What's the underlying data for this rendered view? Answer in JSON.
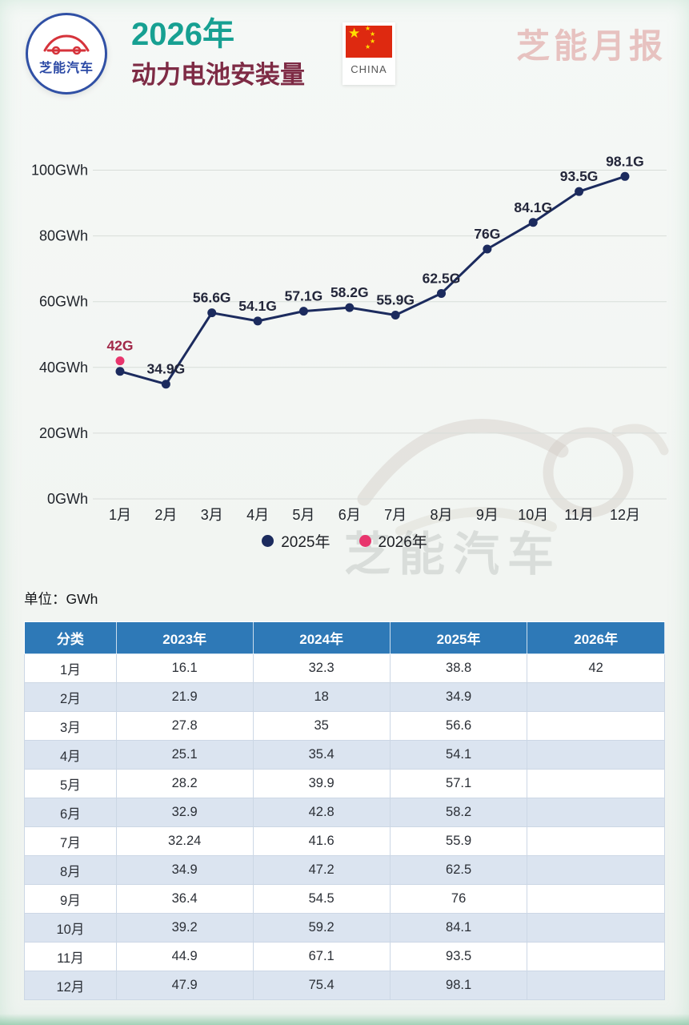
{
  "colors": {
    "title_teal": "#17a092",
    "title_maroon": "#7e2b45",
    "line_navy": "#1c2b5e",
    "dot_pink": "#e8356d",
    "label_red": "#a12848",
    "table_header_bg": "#2e79b7",
    "row_stripe": "#dbe4f0",
    "masthead_pink": "#e7c2c0"
  },
  "header": {
    "logo_text": "芝能汽车",
    "title_line1": "2026年",
    "title_line2": "动力电池安装量",
    "flag_label": "CHINA",
    "masthead": "芝能月报"
  },
  "chart_data": {
    "type": "line",
    "title": "",
    "xlabel": "",
    "ylabel": "GWh",
    "ylim": [
      0,
      100
    ],
    "grid": true,
    "legend_position": "bottom",
    "x": [
      "1月",
      "2月",
      "3月",
      "4月",
      "5月",
      "6月",
      "7月",
      "8月",
      "9月",
      "10月",
      "11月",
      "12月"
    ],
    "y_ticks": [
      {
        "v": 0,
        "label": "0GWh"
      },
      {
        "v": 20,
        "label": "20GWh"
      },
      {
        "v": 40,
        "label": "40GWh"
      },
      {
        "v": 60,
        "label": "60GWh"
      },
      {
        "v": 80,
        "label": "80GWh"
      },
      {
        "v": 100,
        "label": "100GWh"
      }
    ],
    "series": [
      {
        "name": "2025年",
        "color": "#1c2b5e",
        "label_color": "#23263a",
        "values": [
          38.8,
          34.9,
          56.6,
          54.1,
          57.1,
          58.2,
          55.9,
          62.5,
          76,
          84.1,
          93.5,
          98.1
        ],
        "labels": [
          "",
          "34.9G",
          "56.6G",
          "54.1G",
          "57.1G",
          "58.2G",
          "55.9G",
          "62.5G",
          "76G",
          "84.1G",
          "93.5G",
          "98.1G"
        ]
      },
      {
        "name": "2026年",
        "color": "#e8356d",
        "label_color": "#a12848",
        "values": [
          42,
          null,
          null,
          null,
          null,
          null,
          null,
          null,
          null,
          null,
          null,
          null
        ],
        "labels": [
          "42G",
          "",
          "",
          "",
          "",
          "",
          "",
          "",
          "",
          "",
          "",
          ""
        ]
      }
    ]
  },
  "units_label": "单位：GWh",
  "table": {
    "headers": [
      "分类",
      "2023年",
      "2024年",
      "2025年",
      "2026年"
    ],
    "col_widths_pct": [
      14.35,
      21.35,
      21.4,
      21.45,
      21.45
    ],
    "rows": [
      [
        "1月",
        "16.1",
        "32.3",
        "38.8",
        "42"
      ],
      [
        "2月",
        "21.9",
        "18",
        "34.9",
        ""
      ],
      [
        "3月",
        "27.8",
        "35",
        "56.6",
        ""
      ],
      [
        "4月",
        "25.1",
        "35.4",
        "54.1",
        ""
      ],
      [
        "5月",
        "28.2",
        "39.9",
        "57.1",
        ""
      ],
      [
        "6月",
        "32.9",
        "42.8",
        "58.2",
        ""
      ],
      [
        "7月",
        "32.24",
        "41.6",
        "55.9",
        ""
      ],
      [
        "8月",
        "34.9",
        "47.2",
        "62.5",
        ""
      ],
      [
        "9月",
        "36.4",
        "54.5",
        "76",
        ""
      ],
      [
        "10月",
        "39.2",
        "59.2",
        "84.1",
        ""
      ],
      [
        "11月",
        "44.9",
        "67.1",
        "93.5",
        ""
      ],
      [
        "12月",
        "47.9",
        "75.4",
        "98.1",
        ""
      ]
    ]
  },
  "watermark": {
    "text": "芝能汽车"
  }
}
